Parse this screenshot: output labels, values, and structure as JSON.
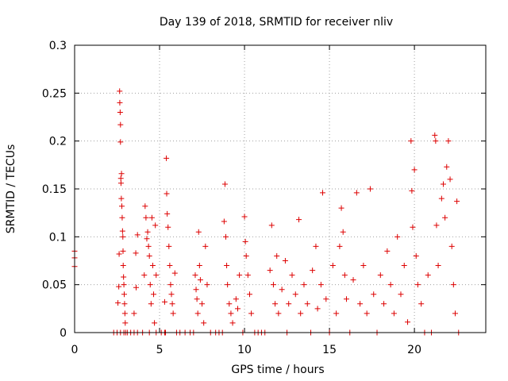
{
  "chart_data": {
    "type": "scatter",
    "title": "Day 139 of 2018, SRMTID for receiver nliv",
    "xlabel": "GPS time / hours",
    "ylabel": "SRMTID / TECUs",
    "xlim": [
      0,
      24.2
    ],
    "ylim": [
      0,
      0.3
    ],
    "x_ticks": [
      0,
      5,
      10,
      15,
      20
    ],
    "x_tick_labels": [
      "0",
      "5",
      "10",
      "15",
      "20"
    ],
    "y_ticks": [
      0,
      0.05,
      0.1,
      0.15,
      0.2,
      0.25,
      0.3
    ],
    "y_tick_labels": [
      "0",
      "0.05",
      "0.1",
      "0.15",
      "0.2",
      "0.25",
      "0.3"
    ],
    "grid": true,
    "marker": "plus",
    "color": "#dd0000",
    "series": [
      {
        "name": "SRMTID",
        "points": [
          [
            0.0,
            0.085
          ],
          [
            0.0,
            0.078
          ],
          [
            0.0,
            0.069
          ],
          [
            2.3,
            0.0
          ],
          [
            2.5,
            0.0
          ],
          [
            2.55,
            0.031
          ],
          [
            2.6,
            0.048
          ],
          [
            2.62,
            0.082
          ],
          [
            2.65,
            0.252
          ],
          [
            2.66,
            0.24
          ],
          [
            2.68,
            0.23
          ],
          [
            2.7,
            0.217
          ],
          [
            2.7,
            0.199
          ],
          [
            2.72,
            0.161
          ],
          [
            2.73,
            0.156
          ],
          [
            2.75,
            0.14
          ],
          [
            2.76,
            0.166
          ],
          [
            2.78,
            0.132
          ],
          [
            2.8,
            0.12
          ],
          [
            2.82,
            0.106
          ],
          [
            2.84,
            0.1
          ],
          [
            2.85,
            0.085
          ],
          [
            2.86,
            0.07
          ],
          [
            2.88,
            0.058
          ],
          [
            2.9,
            0.05
          ],
          [
            2.92,
            0.04
          ],
          [
            2.94,
            0.03
          ],
          [
            2.96,
            0.02
          ],
          [
            2.98,
            0.01
          ],
          [
            3.0,
            0.0
          ],
          [
            2.7,
            0.0
          ],
          [
            2.9,
            0.0
          ],
          [
            3.1,
            0.0
          ],
          [
            3.3,
            0.0
          ],
          [
            3.5,
            0.0
          ],
          [
            3.7,
            0.0
          ],
          [
            3.5,
            0.02
          ],
          [
            3.6,
            0.083
          ],
          [
            3.7,
            0.102
          ],
          [
            3.62,
            0.047
          ],
          [
            4.0,
            0.0
          ],
          [
            4.1,
            0.06
          ],
          [
            4.15,
            0.132
          ],
          [
            4.2,
            0.12
          ],
          [
            4.25,
            0.098
          ],
          [
            4.3,
            0.105
          ],
          [
            4.35,
            0.09
          ],
          [
            4.4,
            0.08
          ],
          [
            4.45,
            0.05
          ],
          [
            4.5,
            0.03
          ],
          [
            4.55,
            0.12
          ],
          [
            4.6,
            0.07
          ],
          [
            4.65,
            0.04
          ],
          [
            4.7,
            0.01
          ],
          [
            4.75,
            0.112
          ],
          [
            4.8,
            0.06
          ],
          [
            4.4,
            0.0
          ],
          [
            4.8,
            0.0
          ],
          [
            5.1,
            0.0
          ],
          [
            5.3,
            0.0
          ],
          [
            5.3,
            0.032
          ],
          [
            5.35,
            0.0
          ],
          [
            5.4,
            0.182
          ],
          [
            5.42,
            0.145
          ],
          [
            5.45,
            0.124
          ],
          [
            5.5,
            0.11
          ],
          [
            5.55,
            0.09
          ],
          [
            5.6,
            0.07
          ],
          [
            5.65,
            0.05
          ],
          [
            5.7,
            0.04
          ],
          [
            5.75,
            0.03
          ],
          [
            5.8,
            0.02
          ],
          [
            5.9,
            0.062
          ],
          [
            6.0,
            0.0
          ],
          [
            6.2,
            0.0
          ],
          [
            6.5,
            0.0
          ],
          [
            6.8,
            0.0
          ],
          [
            7.0,
            0.0
          ],
          [
            7.1,
            0.06
          ],
          [
            7.15,
            0.045
          ],
          [
            7.2,
            0.035
          ],
          [
            7.25,
            0.02
          ],
          [
            7.3,
            0.105
          ],
          [
            7.35,
            0.07
          ],
          [
            7.4,
            0.055
          ],
          [
            7.5,
            0.03
          ],
          [
            7.6,
            0.01
          ],
          [
            7.7,
            0.09
          ],
          [
            7.8,
            0.05
          ],
          [
            8.0,
            0.0
          ],
          [
            8.3,
            0.0
          ],
          [
            8.5,
            0.0
          ],
          [
            8.7,
            0.0
          ],
          [
            8.8,
            0.116
          ],
          [
            8.85,
            0.155
          ],
          [
            8.9,
            0.1
          ],
          [
            8.95,
            0.07
          ],
          [
            9.0,
            0.05
          ],
          [
            9.1,
            0.03
          ],
          [
            9.2,
            0.02
          ],
          [
            9.3,
            0.01
          ],
          [
            9.5,
            0.035
          ],
          [
            9.6,
            0.025
          ],
          [
            9.7,
            0.06
          ],
          [
            9.9,
            0.0
          ],
          [
            10.0,
            0.121
          ],
          [
            10.05,
            0.095
          ],
          [
            10.1,
            0.08
          ],
          [
            10.2,
            0.06
          ],
          [
            10.3,
            0.04
          ],
          [
            10.4,
            0.02
          ],
          [
            10.6,
            0.0
          ],
          [
            10.8,
            0.0
          ],
          [
            11.0,
            0.0
          ],
          [
            11.2,
            0.0
          ],
          [
            11.5,
            0.065
          ],
          [
            11.6,
            0.112
          ],
          [
            11.7,
            0.05
          ],
          [
            11.8,
            0.03
          ],
          [
            11.9,
            0.08
          ],
          [
            12.0,
            0.02
          ],
          [
            12.2,
            0.045
          ],
          [
            12.4,
            0.075
          ],
          [
            12.5,
            0.0
          ],
          [
            12.6,
            0.03
          ],
          [
            12.8,
            0.06
          ],
          [
            13.0,
            0.04
          ],
          [
            13.2,
            0.118
          ],
          [
            13.3,
            0.02
          ],
          [
            13.5,
            0.05
          ],
          [
            13.7,
            0.03
          ],
          [
            13.9,
            0.0
          ],
          [
            14.0,
            0.065
          ],
          [
            14.2,
            0.09
          ],
          [
            14.3,
            0.025
          ],
          [
            14.5,
            0.05
          ],
          [
            14.6,
            0.146
          ],
          [
            14.8,
            0.035
          ],
          [
            15.0,
            0.0
          ],
          [
            15.2,
            0.07
          ],
          [
            15.4,
            0.02
          ],
          [
            15.6,
            0.09
          ],
          [
            15.7,
            0.13
          ],
          [
            15.8,
            0.105
          ],
          [
            15.9,
            0.06
          ],
          [
            16.0,
            0.035
          ],
          [
            16.2,
            0.0
          ],
          [
            16.4,
            0.055
          ],
          [
            16.6,
            0.146
          ],
          [
            16.8,
            0.03
          ],
          [
            17.0,
            0.07
          ],
          [
            17.2,
            0.02
          ],
          [
            17.4,
            0.15
          ],
          [
            17.6,
            0.04
          ],
          [
            17.8,
            0.0
          ],
          [
            18.0,
            0.06
          ],
          [
            18.2,
            0.03
          ],
          [
            18.4,
            0.085
          ],
          [
            18.6,
            0.05
          ],
          [
            18.8,
            0.02
          ],
          [
            19.0,
            0.1
          ],
          [
            19.2,
            0.04
          ],
          [
            19.4,
            0.07
          ],
          [
            19.6,
            0.011
          ],
          [
            19.8,
            0.2
          ],
          [
            19.85,
            0.148
          ],
          [
            19.9,
            0.11
          ],
          [
            20.0,
            0.17
          ],
          [
            20.1,
            0.08
          ],
          [
            20.2,
            0.05
          ],
          [
            20.4,
            0.03
          ],
          [
            20.6,
            0.0
          ],
          [
            20.8,
            0.06
          ],
          [
            21.0,
            0.0
          ],
          [
            21.2,
            0.206
          ],
          [
            21.25,
            0.2
          ],
          [
            21.3,
            0.112
          ],
          [
            21.4,
            0.07
          ],
          [
            21.6,
            0.14
          ],
          [
            21.7,
            0.155
          ],
          [
            21.8,
            0.12
          ],
          [
            21.9,
            0.173
          ],
          [
            22.0,
            0.2
          ],
          [
            22.1,
            0.16
          ],
          [
            22.2,
            0.09
          ],
          [
            22.3,
            0.05
          ],
          [
            22.4,
            0.02
          ],
          [
            22.5,
            0.137
          ],
          [
            22.6,
            0.0
          ]
        ]
      }
    ]
  }
}
